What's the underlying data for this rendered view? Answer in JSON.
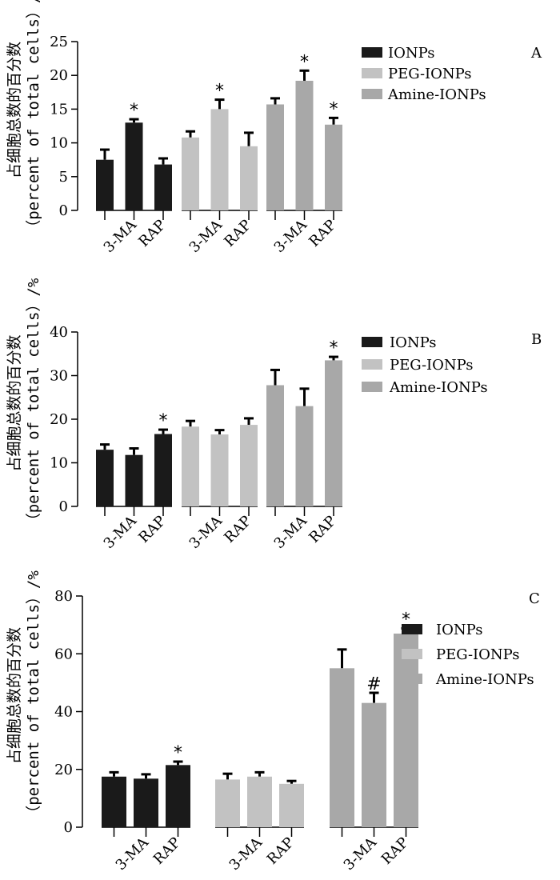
{
  "colors": {
    "IONPs": "#1a1a1a",
    "PEG-IONPs": "#c2c2c2",
    "Amine-IONPs": "#a8a8a8",
    "axis": "#000000"
  },
  "chart_data": [
    {
      "type": "bar",
      "panel": "A",
      "ylabel_main": "占细胞总数的百分数",
      "ylabel_sub": "（percent of total cells）/%",
      "ylim": [
        0,
        25
      ],
      "yticks": [
        0,
        5,
        10,
        15,
        20,
        25
      ],
      "legend": [
        "IONPs",
        "PEG-IONPs",
        "Amine-IONPs"
      ],
      "categories": [
        "",
        "3-MA",
        "RAP"
      ],
      "series": [
        {
          "name": "IONPs",
          "values": [
            7.5,
            13.0,
            6.8
          ],
          "errors": [
            1.5,
            0.5,
            0.9
          ],
          "annotations": [
            "",
            "*",
            ""
          ]
        },
        {
          "name": "PEG-IONPs",
          "values": [
            10.8,
            15.0,
            9.5
          ],
          "errors": [
            0.9,
            1.4,
            2.0
          ],
          "annotations": [
            "",
            "*",
            ""
          ]
        },
        {
          "name": "Amine-IONPs",
          "values": [
            15.7,
            19.2,
            12.7
          ],
          "errors": [
            0.9,
            1.5,
            1.0
          ],
          "annotations": [
            "",
            "*",
            "*"
          ]
        }
      ]
    },
    {
      "type": "bar",
      "panel": "B",
      "ylabel_main": "占细胞总数的百分数",
      "ylabel_sub": "（percent of total cells）/%",
      "ylim": [
        0,
        40
      ],
      "yticks": [
        0,
        10,
        20,
        30,
        40
      ],
      "legend": [
        "IONPs",
        "PEG-IONPs",
        "Amine-IONPs"
      ],
      "categories": [
        "",
        "3-MA",
        "RAP"
      ],
      "series": [
        {
          "name": "IONPs",
          "values": [
            13.0,
            11.8,
            16.6
          ],
          "errors": [
            1.2,
            1.5,
            1.0
          ],
          "annotations": [
            "",
            "",
            "*"
          ]
        },
        {
          "name": "PEG-IONPs",
          "values": [
            18.3,
            16.5,
            18.7
          ],
          "errors": [
            1.3,
            1.0,
            1.5
          ],
          "annotations": [
            "",
            "",
            ""
          ]
        },
        {
          "name": "Amine-IONPs",
          "values": [
            27.8,
            23.0,
            33.5
          ],
          "errors": [
            3.5,
            4.0,
            0.8
          ],
          "annotations": [
            "",
            "",
            "*"
          ]
        }
      ]
    },
    {
      "type": "bar",
      "panel": "C",
      "ylabel_main": "占细胞总数的百分数",
      "ylabel_sub": "（percent of total cells）/%",
      "ylim": [
        0,
        80
      ],
      "yticks": [
        0,
        20,
        40,
        60,
        80
      ],
      "legend": [
        "IONPs",
        "PEG-IONPs",
        "Amine-IONPs"
      ],
      "categories": [
        "",
        "3-MA",
        "RAP"
      ],
      "series": [
        {
          "name": "IONPs",
          "values": [
            17.5,
            16.8,
            21.5
          ],
          "errors": [
            1.5,
            1.5,
            1.2
          ],
          "annotations": [
            "",
            "",
            "*"
          ]
        },
        {
          "name": "PEG-IONPs",
          "values": [
            16.5,
            17.5,
            15.0
          ],
          "errors": [
            2.0,
            1.5,
            1.0
          ],
          "annotations": [
            "",
            "",
            ""
          ]
        },
        {
          "name": "Amine-IONPs",
          "values": [
            55.0,
            43.0,
            67.0
          ],
          "errors": [
            6.5,
            3.5,
            1.8
          ],
          "annotations": [
            "",
            "#",
            "*"
          ]
        }
      ]
    }
  ]
}
